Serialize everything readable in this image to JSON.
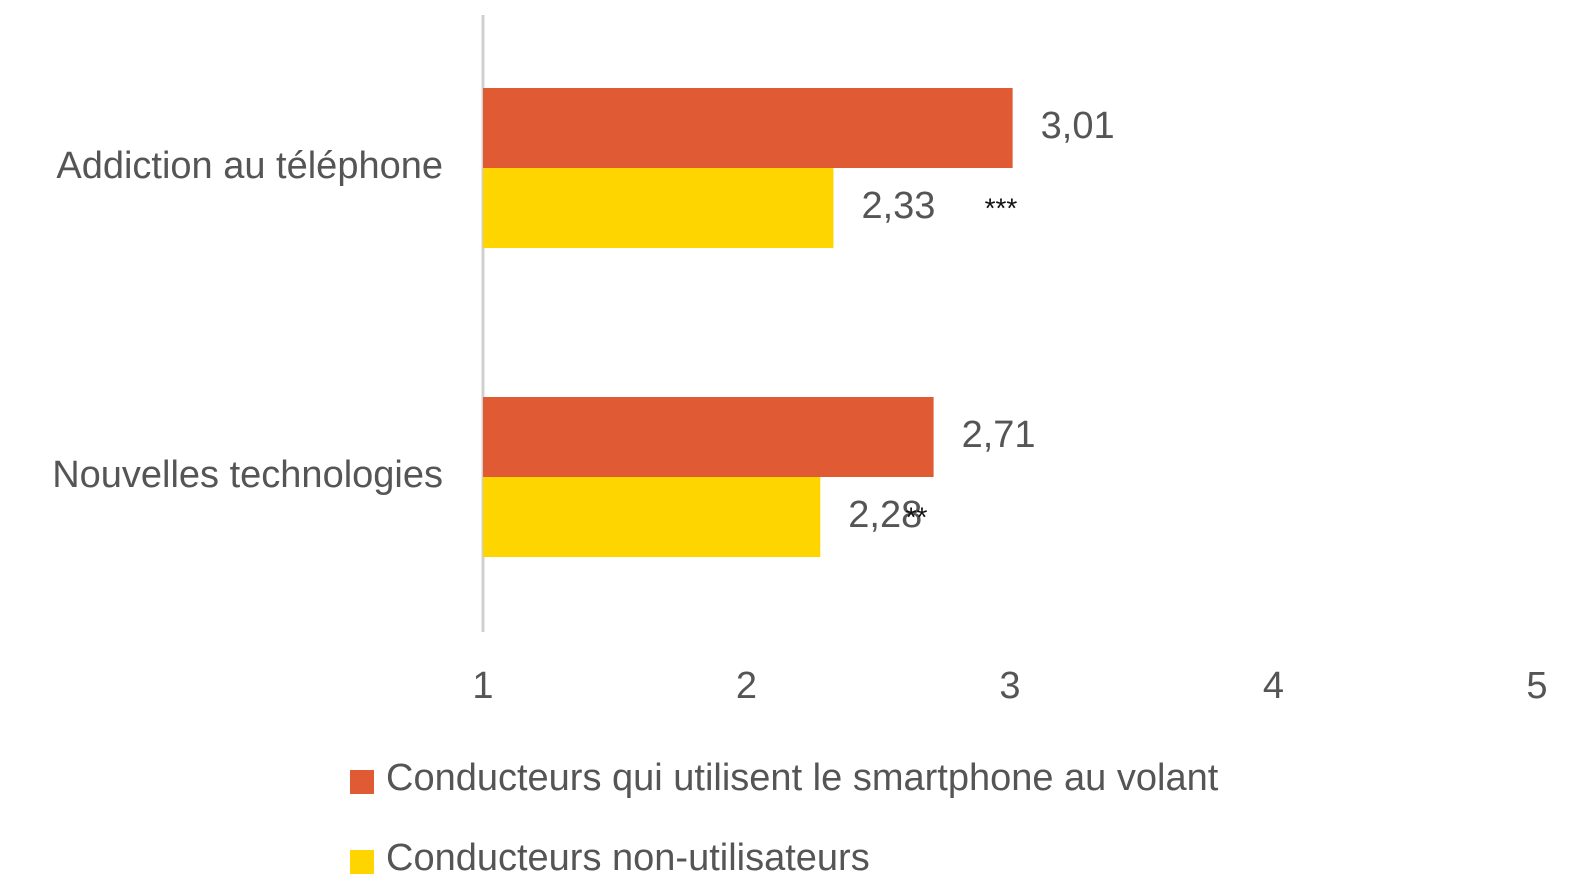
{
  "chart_data": {
    "type": "hbar",
    "categories": [
      "Addiction au téléphone",
      "Nouvelles technologies"
    ],
    "series": [
      {
        "name": "Conducteurs qui utilisent le smartphone au volant",
        "color": "#e05a33",
        "values": [
          3.01,
          2.71
        ],
        "value_labels": [
          "3,01",
          "2,71"
        ]
      },
      {
        "name": "Conducteurs non-utilisateurs",
        "color": "#ffd500",
        "values": [
          2.33,
          2.28
        ],
        "value_labels": [
          "2,33",
          "2,28"
        ]
      }
    ],
    "annotations": [
      "***",
      "**"
    ],
    "xlim": [
      1,
      5
    ],
    "xticks": [
      1,
      2,
      3,
      4,
      5
    ],
    "grid": false,
    "legend": "bottom"
  }
}
